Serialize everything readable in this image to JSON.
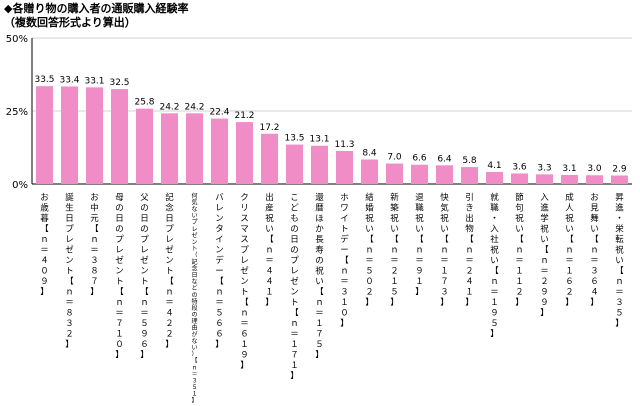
{
  "title": "◆各贈り物の購入者の通販購入経験率",
  "subtitle": "（複数回答形式より算出）",
  "colors": {
    "bar": "#f08cc6",
    "axis": "#000000",
    "grid": "#d0d0d0"
  },
  "chart_data": {
    "type": "bar",
    "title": "◆各贈り物の購入者の通販購入経験率",
    "subtitle": "（複数回答形式より算出）",
    "ylim": [
      0,
      50
    ],
    "yticks": [
      "0%",
      "25%",
      "50%"
    ],
    "categories": [
      "お歳暮【ｎ＝４０９】",
      "誕生日プレゼント【ｎ＝８３２】",
      "お中元【ｎ＝３８７】",
      "母の日のプレゼント【ｎ＝７１０】",
      "父の日のプレゼント【ｎ＝５９６】",
      "記念日プレゼント【ｎ＝４２２】",
      "何気ないプレゼント（記念日などの特段の理由がない）【ｎ＝３５１】",
      "バレンタインデー【ｎ＝５６６】",
      "クリスマスプレゼント【ｎ＝６１９】",
      "出産祝い【ｎ＝４４１】",
      "こどもの日のプレゼント【ｎ＝１７１】",
      "還暦ほか長寿の祝い【ｎ＝１７５】",
      "ホワイトデー【ｎ＝３１０】",
      "結婚祝い【ｎ＝５０２】",
      "新築祝い【ｎ＝２１５】",
      "退職祝い【ｎ＝９１】",
      "快気祝い【ｎ＝１７３】",
      "引き出物【ｎ＝２４１】",
      "就職・入社祝い【ｎ＝１９５】",
      "節句祝い【ｎ＝１１２】",
      "入進学祝い【ｎ＝２９９】",
      "成人祝い【ｎ＝１６２】",
      "お見舞い【ｎ＝３６４】",
      "昇進・栄転祝い【ｎ＝３５】"
    ],
    "values": [
      33.5,
      33.4,
      33.1,
      32.5,
      25.8,
      24.2,
      24.2,
      22.4,
      21.2,
      17.2,
      13.5,
      13.1,
      11.3,
      8.4,
      7.0,
      6.6,
      6.4,
      5.8,
      4.1,
      3.6,
      3.3,
      3.1,
      3.0,
      2.9
    ],
    "value_labels": [
      "33.5",
      "33.4",
      "33.1",
      "32.5",
      "25.8",
      "24.2",
      "24.2",
      "22.4",
      "21.2",
      "17.2",
      "13.5",
      "13.1",
      "11.3",
      "8.4",
      "7.0",
      "6.6",
      "6.4",
      "5.8",
      "4.1",
      "3.6",
      "3.3",
      "3.1",
      "3.0",
      "2.9"
    ],
    "grid": true
  }
}
